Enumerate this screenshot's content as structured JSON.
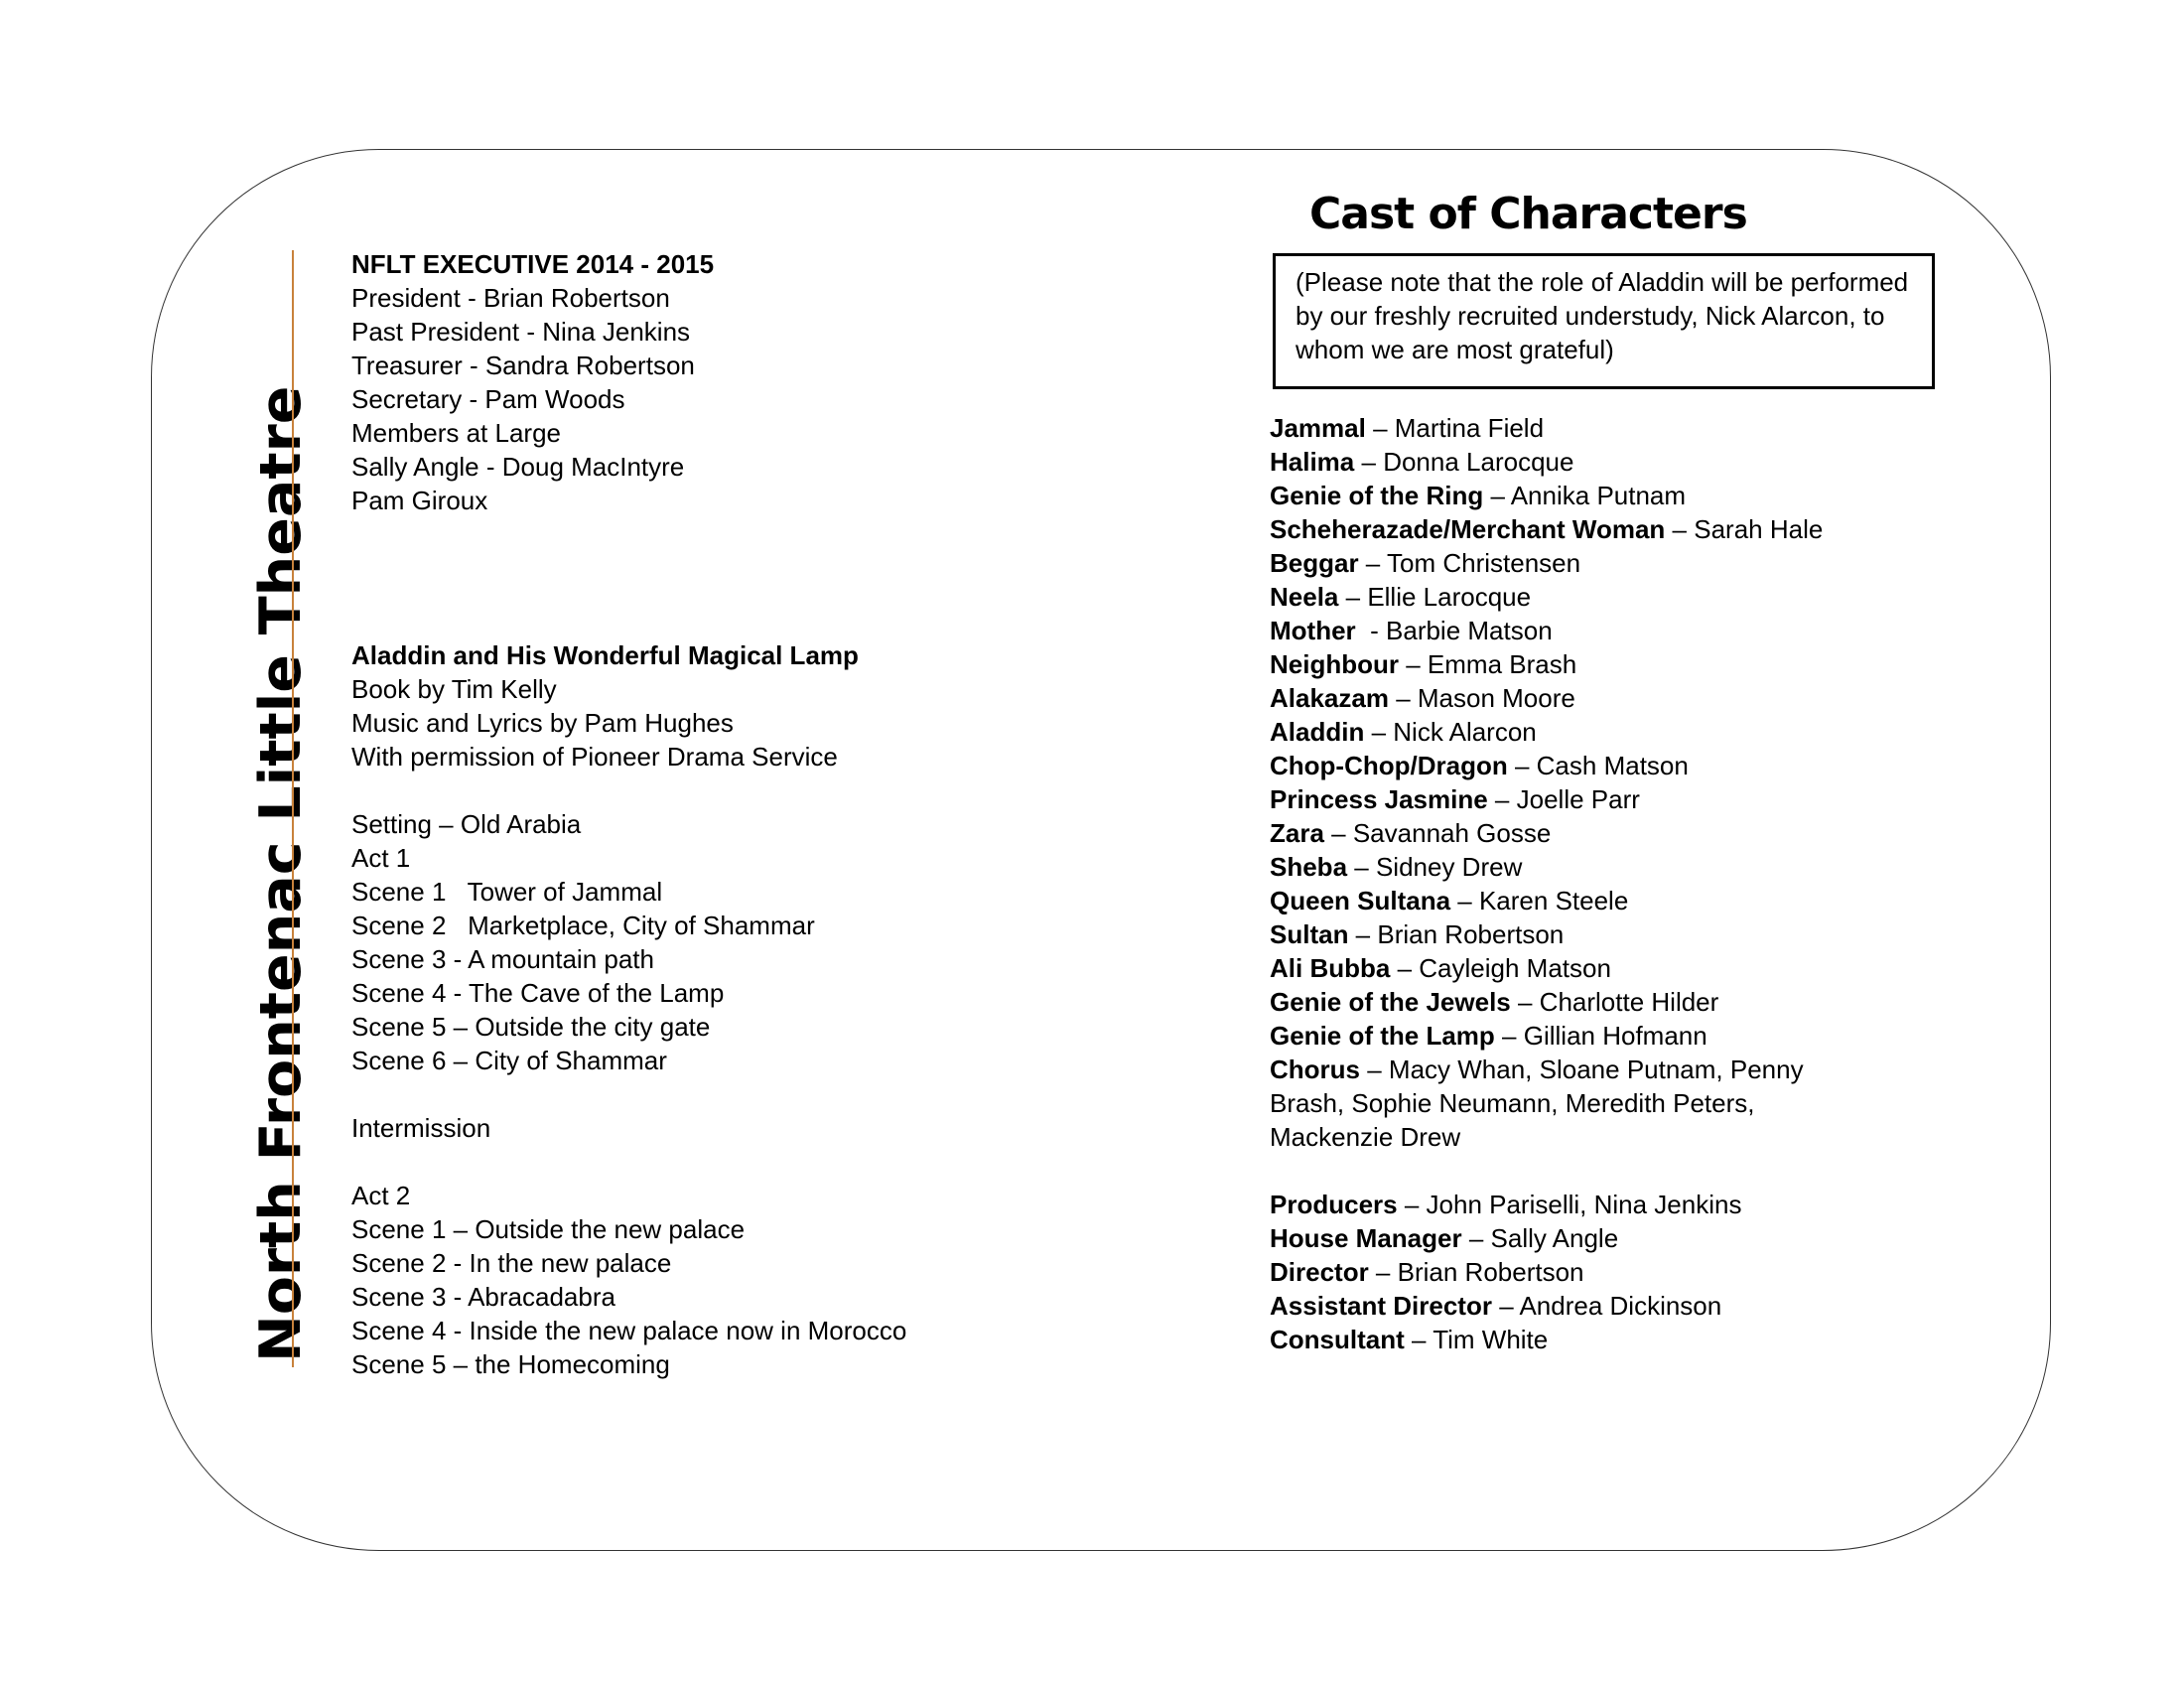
{
  "side_title": "North Frontenac Little Theatre",
  "colors": {
    "accent_line": "#c8823c"
  },
  "executive": {
    "heading": "NFLT EXECUTIVE 2014 - 2015",
    "lines": [
      "President - Brian Robertson",
      "Past President - Nina Jenkins",
      "Treasurer - Sandra Robertson",
      "Secretary - Pam Woods",
      "Members at Large",
      "Sally Angle - Doug MacIntyre",
      "Pam Giroux"
    ]
  },
  "show": {
    "title": "Aladdin and His Wonderful Magical Lamp",
    "credits": [
      "Book by Tim Kelly",
      "Music and Lyrics by Pam Hughes",
      "With permission of Pioneer Drama Service"
    ],
    "setting": "Setting – Old Arabia",
    "act1": {
      "label": "Act 1",
      "scenes": [
        "Scene 1   Tower of Jammal",
        "Scene 2   Marketplace, City of Shammar",
        "Scene 3 - A mountain path",
        "Scene 4 - The Cave of the Lamp",
        "Scene 5 – Outside the city gate",
        "Scene 6 – City of Shammar"
      ]
    },
    "intermission": "Intermission",
    "act2": {
      "label": "Act 2",
      "scenes": [
        "Scene 1 – Outside the new palace",
        "Scene 2 - In the new palace",
        "Scene 3 - Abracadabra",
        "Scene 4 - Inside the new palace now in Morocco",
        "Scene 5 – the Homecoming"
      ]
    }
  },
  "cast": {
    "title": "Cast of Characters",
    "note": "(Please note that the role of Aladdin will be performed by our freshly recruited understudy, Nick Alarcon, to whom we are most grateful)",
    "roles": [
      {
        "role": "Jammal",
        "sep": " – ",
        "actor": "Martina Field"
      },
      {
        "role": "Halima",
        "sep": " – ",
        "actor": "Donna Larocque"
      },
      {
        "role": "Genie of the Ring",
        "sep": " – ",
        "actor": "Annika Putnam"
      },
      {
        "role": "Scheherazade/Merchant Woman",
        "sep": " – ",
        "actor": "Sarah Hale"
      },
      {
        "role": "Beggar",
        "sep": " – ",
        "actor": "Tom Christensen"
      },
      {
        "role": "Neela",
        "sep": " – ",
        "actor": "Ellie Larocque"
      },
      {
        "role": "Mother",
        "sep": "  - ",
        "actor": "Barbie Matson"
      },
      {
        "role": "Neighbour",
        "sep": " – ",
        "actor": "Emma Brash"
      },
      {
        "role": "Alakazam",
        "sep": " – ",
        "actor": "Mason Moore"
      },
      {
        "role": "Aladdin",
        "sep": " – ",
        "actor": "Nick Alarcon"
      },
      {
        "role": "Chop-Chop/Dragon",
        "sep": " – ",
        "actor": "Cash Matson"
      },
      {
        "role": "Princess Jasmine",
        "sep": " – ",
        "actor": "Joelle Parr"
      },
      {
        "role": "Zara",
        "sep": " – ",
        "actor": "Savannah Gosse"
      },
      {
        "role": "Sheba",
        "sep": " – ",
        "actor": "Sidney Drew"
      },
      {
        "role": "Queen Sultana",
        "sep": " – ",
        "actor": "Karen Steele"
      },
      {
        "role": "Sultan",
        "sep": " – ",
        "actor": "Brian Robertson"
      },
      {
        "role": "Ali Bubba",
        "sep": " – ",
        "actor": "Cayleigh Matson"
      },
      {
        "role": "Genie of the Jewels",
        "sep": " – ",
        "actor": "Charlotte Hilder"
      },
      {
        "role": "Genie of the Lamp",
        "sep": " – ",
        "actor": "Gillian Hofmann"
      },
      {
        "role": "Chorus",
        "sep": " – ",
        "actor": "Macy Whan, Sloane Putnam, Penny Brash, Sophie Neumann, Meredith Peters, Mackenzie Drew"
      }
    ],
    "crew": [
      {
        "role": "Producers",
        "sep": " – ",
        "actor": "John Pariselli, Nina Jenkins"
      },
      {
        "role": "House Manager",
        "sep": " – ",
        "actor": "Sally Angle"
      },
      {
        "role": "Director",
        "sep": " – ",
        "actor": "Brian Robertson"
      },
      {
        "role": "Assistant Director",
        "sep": " – ",
        "actor": "Andrea Dickinson"
      },
      {
        "role": "Consultant",
        "sep": " – ",
        "actor": "Tim White"
      }
    ]
  }
}
